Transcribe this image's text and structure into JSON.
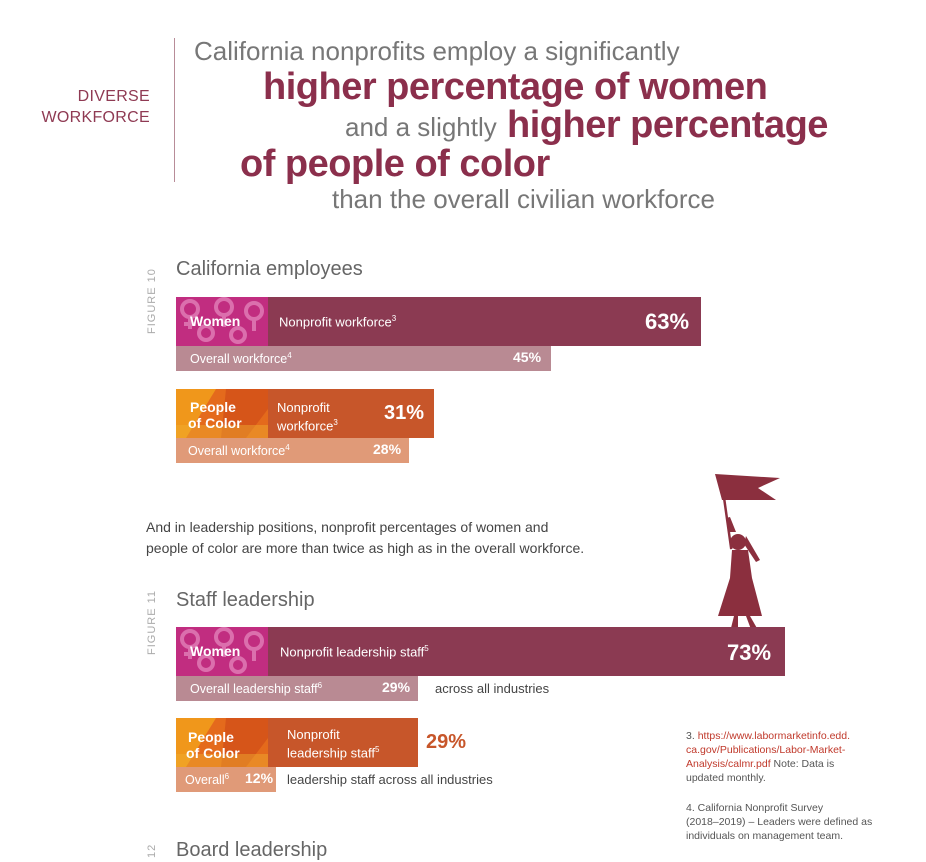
{
  "section_label": {
    "line1": "DIVERSE",
    "line2": "WORKFORCE"
  },
  "headline": {
    "l1": "California nonprofits employ a significantly",
    "l2": "higher percentage of women",
    "l3a": "and a slightly",
    "l3b": "higher percentage",
    "l4": "of people of color",
    "l5": "than the overall civilian workforce"
  },
  "colors": {
    "women_main": "#8b3a52",
    "women_sub": "#b98a93",
    "color_main": "#c7562a",
    "color_sub": "#e09a78",
    "badge_women": "#c12d80",
    "badge_color": "#e46a1c"
  },
  "intro": {
    "line1": "And in leadership positions, nonprofit percentages of women and",
    "line2": "people of color are more than twice as high as in the overall workforce."
  },
  "footnotes": {
    "n3_prefix": "3.",
    "n3_link_1": "https://www.labormarketinfo.edd.",
    "n3_link_2": "ca.gov/Publications/Labor-Market-",
    "n3_link_3": "Analysis/calmr.pdf",
    "n3_note_a": "Note: Data is",
    "n3_note_b": "updated monthly.",
    "n4_1": "4. California Nonprofit Survey",
    "n4_2": "(2018–2019) – Leaders were defined as",
    "n4_3": "individuals on management team."
  },
  "chart_data": [
    {
      "type": "bar",
      "figure_tag": "FIGURE 10",
      "title": "California employees",
      "unit": "%",
      "groups": [
        {
          "badge_1": "Women",
          "badge_2": "",
          "main_label_1": "Nonprofit workforce",
          "main_label_2": "",
          "main_sup": "3",
          "main_value": 63,
          "main_value_text": "63%",
          "sub_label": "Overall workforce",
          "sub_sup": "4",
          "sub_trailing": "",
          "sub_value": 45,
          "sub_value_text": "45%"
        },
        {
          "badge_1": "People",
          "badge_2": "of Color",
          "main_label_1": "Nonprofit",
          "main_label_2": "workforce",
          "main_sup": "3",
          "main_value": 31,
          "main_value_text": "31%",
          "sub_label": "Overall workforce",
          "sub_sup": "4",
          "sub_trailing": "",
          "sub_value": 28,
          "sub_value_text": "28%"
        }
      ]
    },
    {
      "type": "bar",
      "figure_tag": "FIGURE 11",
      "title": "Staff leadership",
      "unit": "%",
      "groups": [
        {
          "badge_1": "Women",
          "badge_2": "",
          "main_label_1": "Nonprofit leadership staff",
          "main_label_2": "",
          "main_sup": "5",
          "main_value": 73,
          "main_value_text": "73%",
          "sub_label": "Overall leadership staff",
          "sub_sup": "6",
          "sub_trailing": "across all industries",
          "sub_value": 29,
          "sub_value_text": "29%"
        },
        {
          "badge_1": "People",
          "badge_2": "of Color",
          "main_label_1": "Nonprofit",
          "main_label_2": "leadership staff",
          "main_sup": "5",
          "main_value": 29,
          "main_value_text": "29%",
          "sub_label": "Overall",
          "sub_sup": "6",
          "sub_trailing": "leadership staff across all industries",
          "sub_value": 12,
          "sub_value_text": "12%"
        }
      ]
    },
    {
      "type": "bar",
      "figure_tag": "12",
      "title": "Board leadership",
      "unit": "%",
      "groups": []
    }
  ]
}
